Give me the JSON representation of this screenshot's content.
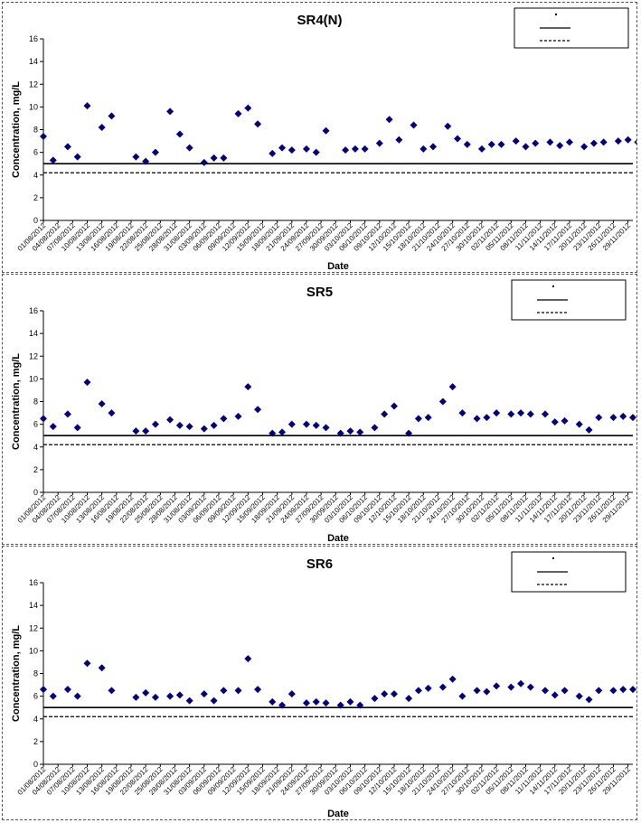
{
  "chart_data": [
    {
      "type": "scatter",
      "title": "SR4(N)",
      "xlabel": "Date",
      "ylabel": "Concentration, mg/L",
      "ylim": [
        0,
        16
      ],
      "yticks": [
        0,
        2,
        4,
        6,
        8,
        10,
        12,
        14,
        16
      ],
      "grid": false,
      "legend": "top-right",
      "x_tick_labels": [
        "01/08/2012",
        "04/08/2012",
        "07/08/2012",
        "10/08/2012",
        "13/08/2012",
        "16/08/2012",
        "19/08/2012",
        "22/08/2012",
        "25/08/2012",
        "28/08/2012",
        "31/08/2012",
        "03/09/2012",
        "06/09/2012",
        "09/09/2012",
        "12/09/2012",
        "15/09/2012",
        "18/09/2012",
        "21/09/2012",
        "24/09/2012",
        "27/09/2012",
        "30/09/2012",
        "03/10/2012",
        "06/10/2012",
        "09/10/2012",
        "12/10/2012",
        "15/10/2012",
        "18/10/2012",
        "21/10/2012",
        "24/10/2012",
        "27/10/2012",
        "30/10/2012",
        "02/11/2012",
        "05/11/2012",
        "08/11/2012",
        "11/11/2012",
        "14/11/2012",
        "17/11/2012",
        "20/11/2012",
        "23/11/2012",
        "26/11/2012",
        "29/11/2012"
      ],
      "x_range": [
        "01/08/2012",
        "30/11/2012"
      ],
      "series": [
        {
          "marker": "diamond",
          "color": "#000080",
          "x": [
            "01/08/2012",
            "03/08/2012",
            "06/08/2012",
            "08/08/2012",
            "10/08/2012",
            "13/08/2012",
            "15/08/2012",
            "20/08/2012",
            "22/08/2012",
            "24/08/2012",
            "27/08/2012",
            "29/08/2012",
            "31/08/2012",
            "03/09/2012",
            "05/09/2012",
            "07/09/2012",
            "10/09/2012",
            "12/09/2012",
            "14/09/2012",
            "17/09/2012",
            "19/09/2012",
            "21/09/2012",
            "24/09/2012",
            "26/09/2012",
            "28/09/2012",
            "02/10/2012",
            "04/10/2012",
            "06/10/2012",
            "09/10/2012",
            "11/10/2012",
            "13/10/2012",
            "16/10/2012",
            "18/10/2012",
            "20/10/2012",
            "23/10/2012",
            "25/10/2012",
            "27/10/2012",
            "30/10/2012",
            "01/11/2012",
            "03/11/2012",
            "06/11/2012",
            "08/11/2012",
            "10/11/2012",
            "13/11/2012",
            "15/11/2012",
            "17/11/2012",
            "20/11/2012",
            "22/11/2012",
            "24/11/2012",
            "27/11/2012",
            "29/11/2012",
            "01/12/2012"
          ],
          "y": [
            7.4,
            5.3,
            6.5,
            5.6,
            10.1,
            8.2,
            9.2,
            5.6,
            5.2,
            6.0,
            9.6,
            7.6,
            6.4,
            5.1,
            5.5,
            5.5,
            9.4,
            9.9,
            8.5,
            5.9,
            6.4,
            6.2,
            6.3,
            6.0,
            7.9,
            6.2,
            6.3,
            6.3,
            6.8,
            8.9,
            7.1,
            8.4,
            6.3,
            6.5,
            8.3,
            7.2,
            6.7,
            6.3,
            6.7,
            6.7,
            7.0,
            6.5,
            6.8,
            6.9,
            6.6,
            6.9,
            6.5,
            6.8,
            6.9,
            7.0,
            7.1,
            6.9
          ]
        }
      ],
      "reference_lines": [
        {
          "style": "solid",
          "y": 5
        },
        {
          "style": "dashed",
          "y": 4.2
        }
      ]
    },
    {
      "type": "scatter",
      "title": "SR5",
      "xlabel": "Date",
      "ylabel": "Concentration, mg/L",
      "ylim": [
        0,
        16
      ],
      "yticks": [
        0,
        2,
        4,
        6,
        8,
        10,
        12,
        14,
        16
      ],
      "grid": false,
      "legend": "top-right",
      "x_tick_labels": [
        "01/08/2012",
        "04/08/2012",
        "07/08/2012",
        "10/08/2012",
        "13/08/2012",
        "16/08/2012",
        "19/08/2012",
        "22/08/2012",
        "25/08/2012",
        "28/08/2012",
        "31/08/2012",
        "03/09/2012",
        "06/09/2012",
        "09/09/2012",
        "12/09/2012",
        "15/09/2012",
        "18/09/2012",
        "21/09/2012",
        "24/09/2012",
        "27/09/2012",
        "30/09/2012",
        "03/10/2012",
        "06/10/2012",
        "09/10/2012",
        "12/10/2012",
        "15/10/2012",
        "18/10/2012",
        "21/10/2012",
        "24/10/2012",
        "27/10/2012",
        "30/10/2012",
        "02/11/2012",
        "05/11/2012",
        "08/11/2012",
        "11/11/2012",
        "14/11/2012",
        "17/11/2012",
        "20/11/2012",
        "23/11/2012",
        "26/11/2012",
        "29/11/2012"
      ],
      "x_range": [
        "01/08/2012",
        "30/11/2012"
      ],
      "series": [
        {
          "marker": "diamond",
          "color": "#000080",
          "x": [
            "01/08/2012",
            "03/08/2012",
            "06/08/2012",
            "08/08/2012",
            "10/08/2012",
            "13/08/2012",
            "15/08/2012",
            "20/08/2012",
            "22/08/2012",
            "24/08/2012",
            "27/08/2012",
            "29/08/2012",
            "31/08/2012",
            "03/09/2012",
            "05/09/2012",
            "07/09/2012",
            "10/09/2012",
            "12/09/2012",
            "14/09/2012",
            "17/09/2012",
            "19/09/2012",
            "21/09/2012",
            "24/09/2012",
            "26/09/2012",
            "28/09/2012",
            "01/10/2012",
            "03/10/2012",
            "05/10/2012",
            "08/10/2012",
            "10/10/2012",
            "12/10/2012",
            "15/10/2012",
            "17/10/2012",
            "19/10/2012",
            "22/10/2012",
            "24/10/2012",
            "26/10/2012",
            "29/10/2012",
            "31/10/2012",
            "02/11/2012",
            "05/11/2012",
            "07/11/2012",
            "09/11/2012",
            "12/11/2012",
            "14/11/2012",
            "16/11/2012",
            "19/11/2012",
            "21/11/2012",
            "23/11/2012",
            "26/11/2012",
            "28/11/2012",
            "30/11/2012"
          ],
          "y": [
            6.5,
            5.8,
            6.9,
            5.7,
            9.7,
            7.8,
            7.0,
            5.4,
            5.4,
            6.0,
            6.4,
            5.9,
            5.8,
            5.6,
            5.9,
            6.5,
            6.7,
            9.3,
            7.3,
            5.2,
            5.3,
            6.0,
            6.0,
            5.9,
            5.7,
            5.2,
            5.4,
            5.3,
            5.7,
            6.9,
            7.6,
            5.2,
            6.5,
            6.6,
            8.0,
            9.3,
            7.0,
            6.5,
            6.6,
            7.0,
            6.9,
            7.0,
            6.9,
            6.9,
            6.2,
            6.3,
            6.0,
            5.5,
            6.6,
            6.6,
            6.7,
            6.6
          ]
        }
      ],
      "reference_lines": [
        {
          "style": "solid",
          "y": 5
        },
        {
          "style": "dashed",
          "y": 4.2
        }
      ]
    },
    {
      "type": "scatter",
      "title": "SR6",
      "xlabel": "Date",
      "ylabel": "Concentration, mg/L",
      "ylim": [
        0,
        16
      ],
      "yticks": [
        0,
        2,
        4,
        6,
        8,
        10,
        12,
        14,
        16
      ],
      "grid": false,
      "legend": "top-right",
      "x_tick_labels": [
        "01/08/2012",
        "04/08/2012",
        "07/08/2012",
        "10/08/2012",
        "13/08/2012",
        "16/08/2012",
        "19/08/2012",
        "22/08/2012",
        "25/08/2012",
        "28/08/2012",
        "31/08/2012",
        "03/09/2012",
        "06/09/2012",
        "09/09/2012",
        "12/09/2012",
        "15/09/2012",
        "18/09/2012",
        "21/09/2012",
        "24/09/2012",
        "27/09/2012",
        "30/09/2012",
        "03/10/2012",
        "06/10/2012",
        "09/10/2012",
        "12/10/2012",
        "15/10/2012",
        "18/10/2012",
        "21/10/2012",
        "24/10/2012",
        "27/10/2012",
        "30/10/2012",
        "02/11/2012",
        "05/11/2012",
        "08/11/2012",
        "11/11/2012",
        "14/11/2012",
        "17/11/2012",
        "20/11/2012",
        "23/11/2012",
        "26/11/2012",
        "29/11/2012"
      ],
      "x_range": [
        "01/08/2012",
        "30/11/2012"
      ],
      "series": [
        {
          "marker": "diamond",
          "color": "#000080",
          "x": [
            "01/08/2012",
            "03/08/2012",
            "06/08/2012",
            "08/08/2012",
            "10/08/2012",
            "13/08/2012",
            "15/08/2012",
            "20/08/2012",
            "22/08/2012",
            "24/08/2012",
            "27/08/2012",
            "29/08/2012",
            "31/08/2012",
            "03/09/2012",
            "05/09/2012",
            "07/09/2012",
            "10/09/2012",
            "12/09/2012",
            "14/09/2012",
            "17/09/2012",
            "19/09/2012",
            "21/09/2012",
            "24/09/2012",
            "26/09/2012",
            "28/09/2012",
            "01/10/2012",
            "03/10/2012",
            "05/10/2012",
            "08/10/2012",
            "10/10/2012",
            "12/10/2012",
            "15/10/2012",
            "17/10/2012",
            "19/10/2012",
            "22/10/2012",
            "24/10/2012",
            "26/10/2012",
            "29/10/2012",
            "31/10/2012",
            "02/11/2012",
            "05/11/2012",
            "07/11/2012",
            "09/11/2012",
            "12/11/2012",
            "14/11/2012",
            "16/11/2012",
            "19/11/2012",
            "21/11/2012",
            "23/11/2012",
            "26/11/2012",
            "28/11/2012",
            "30/11/2012"
          ],
          "y": [
            6.6,
            6.0,
            6.6,
            6.0,
            8.9,
            8.5,
            6.5,
            5.9,
            6.3,
            5.9,
            6.0,
            6.1,
            5.6,
            6.2,
            5.6,
            6.5,
            6.5,
            9.3,
            6.6,
            5.5,
            5.2,
            6.2,
            5.4,
            5.5,
            5.4,
            5.2,
            5.5,
            5.2,
            5.8,
            6.2,
            6.2,
            5.8,
            6.5,
            6.7,
            6.8,
            7.5,
            6.0,
            6.5,
            6.4,
            6.9,
            6.8,
            7.1,
            6.8,
            6.5,
            6.1,
            6.5,
            6.0,
            5.7,
            6.5,
            6.5,
            6.6,
            6.6
          ]
        }
      ],
      "reference_lines": [
        {
          "style": "solid",
          "y": 5
        },
        {
          "style": "dashed",
          "y": 4.2
        }
      ]
    }
  ]
}
